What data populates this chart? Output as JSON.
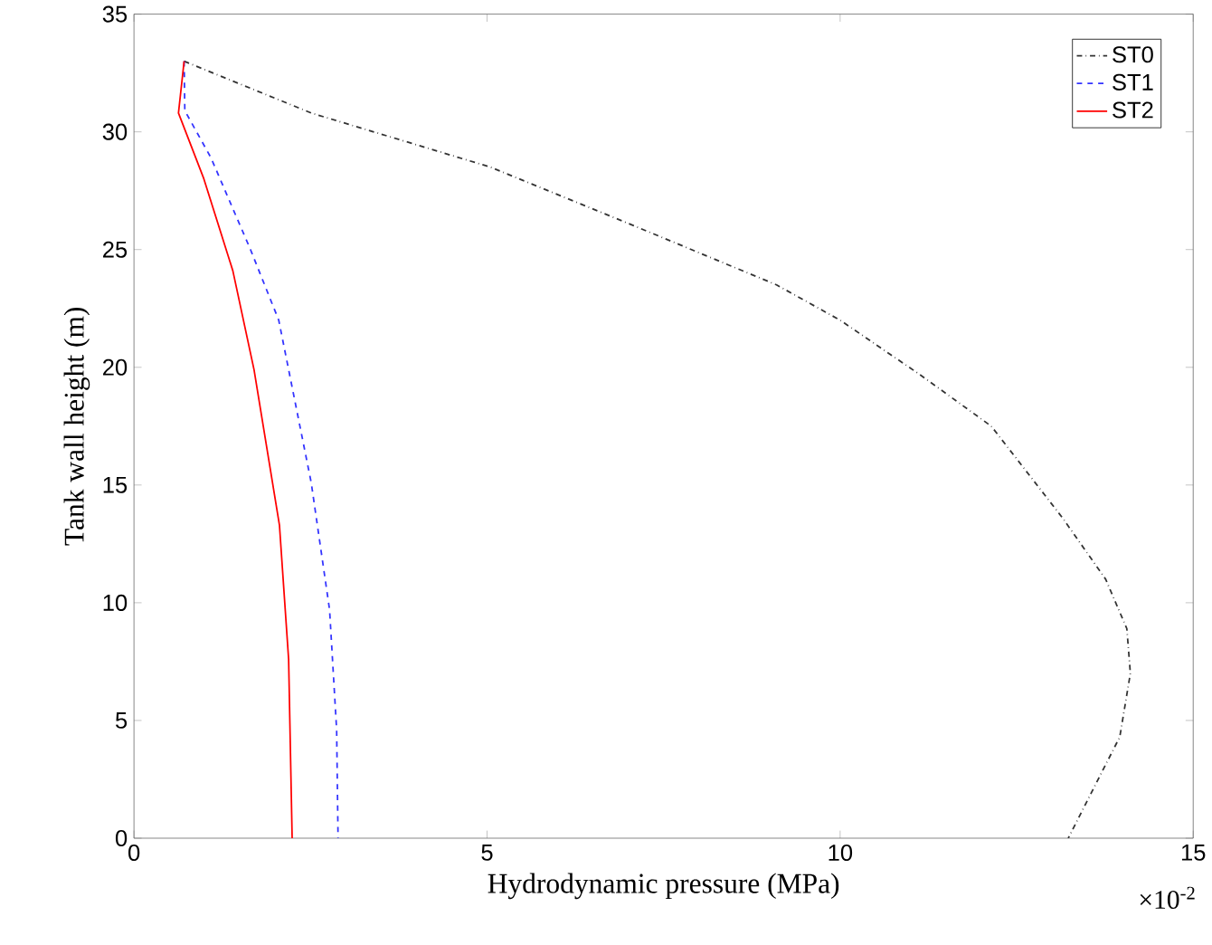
{
  "chart_data": {
    "type": "line",
    "xlabel": "Hydrodynamic pressure (MPa)",
    "ylabel": "Tank wall height (m)",
    "annotations": [
      "×10$^{-2}$"
    ],
    "xlim": [
      0,
      15
    ],
    "xticks": [
      0,
      5,
      10,
      15
    ],
    "ylim": [
      0,
      35
    ],
    "yticks": [
      0,
      5,
      10,
      15,
      20,
      25,
      30,
      35
    ],
    "grid": false,
    "legend": "top right",
    "marker": "none",
    "series": [
      {
        "name": "ST0",
        "color": "#333333",
        "line_style": "dashdot",
        "x": [
          0.71,
          2.51,
          5.05,
          7.17,
          9.1,
          10.0,
          11.1,
          12.14,
          13.15,
          13.76,
          14.06,
          14.11,
          13.96,
          13.23
        ],
        "values": [
          33.0,
          30.8,
          28.5,
          25.9,
          23.5,
          22.0,
          19.75,
          17.5,
          13.6,
          11.0,
          8.9,
          7.0,
          4.3,
          0
        ]
      },
      {
        "name": "ST1",
        "color": "#3333ff",
        "line_style": "dashed",
        "x": [
          0.71,
          0.72,
          1.09,
          1.65,
          2.05,
          2.51,
          2.77,
          2.87,
          2.89
        ],
        "values": [
          33.0,
          30.9,
          28.9,
          25.0,
          22.0,
          15.1,
          9.7,
          4.6,
          0
        ]
      },
      {
        "name": "ST2",
        "color": "#ff0000",
        "line_style": "solid",
        "x": [
          0.71,
          0.63,
          0.99,
          1.4,
          1.7,
          2.06,
          2.19,
          2.24
        ],
        "values": [
          33.0,
          30.8,
          28.0,
          24.1,
          19.9,
          13.3,
          7.6,
          0
        ]
      }
    ]
  }
}
